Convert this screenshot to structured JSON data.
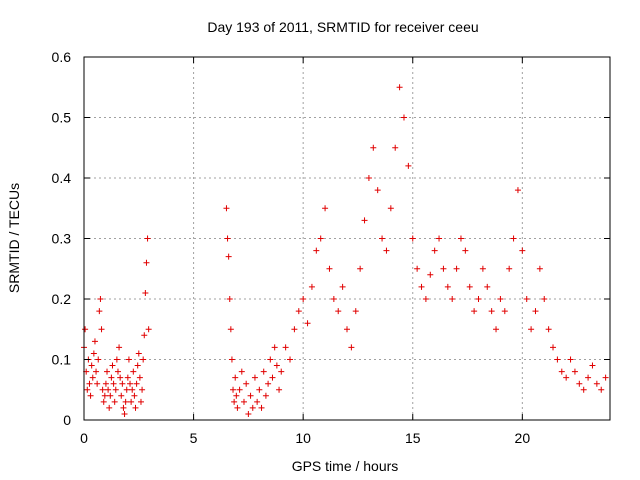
{
  "chart_data": {
    "type": "scatter",
    "title": "Day 193 of 2011, SRMTID for receiver ceeu",
    "xlabel": "GPS time / hours",
    "ylabel": "SRMTID / TECUs",
    "xlim": [
      0,
      24
    ],
    "ylim": [
      0,
      0.6
    ],
    "grid": true,
    "x_ticks": [
      0,
      5,
      10,
      15,
      20
    ],
    "x_tick_labels": [
      "0",
      "5",
      "10",
      "15",
      "20"
    ],
    "y_ticks": [
      0,
      0.1,
      0.2,
      0.3,
      0.4,
      0.5,
      0.6
    ],
    "y_tick_labels": [
      "0",
      "0.1",
      "0.2",
      "0.3",
      "0.4",
      "0.5",
      "0.6"
    ],
    "marker": "+",
    "color": "#e00000",
    "series": [
      {
        "name": "SRMTID",
        "points": [
          [
            0.0,
            0.12
          ],
          [
            0.05,
            0.15
          ],
          [
            0.1,
            0.08
          ],
          [
            0.15,
            0.05
          ],
          [
            0.2,
            0.1
          ],
          [
            0.25,
            0.06
          ],
          [
            0.3,
            0.04
          ],
          [
            0.35,
            0.09
          ],
          [
            0.4,
            0.07
          ],
          [
            0.45,
            0.11
          ],
          [
            0.5,
            0.13
          ],
          [
            0.55,
            0.08
          ],
          [
            0.6,
            0.06
          ],
          [
            0.65,
            0.1
          ],
          [
            0.7,
            0.18
          ],
          [
            0.75,
            0.2
          ],
          [
            0.8,
            0.15
          ],
          [
            0.85,
            0.05
          ],
          [
            0.9,
            0.03
          ],
          [
            0.95,
            0.04
          ],
          [
            1.0,
            0.06
          ],
          [
            1.05,
            0.08
          ],
          [
            1.1,
            0.05
          ],
          [
            1.15,
            0.02
          ],
          [
            1.2,
            0.04
          ],
          [
            1.25,
            0.07
          ],
          [
            1.3,
            0.09
          ],
          [
            1.35,
            0.06
          ],
          [
            1.4,
            0.03
          ],
          [
            1.45,
            0.05
          ],
          [
            1.5,
            0.1
          ],
          [
            1.55,
            0.08
          ],
          [
            1.6,
            0.12
          ],
          [
            1.65,
            0.07
          ],
          [
            1.7,
            0.04
          ],
          [
            1.75,
            0.06
          ],
          [
            1.8,
            0.02
          ],
          [
            1.85,
            0.01
          ],
          [
            1.9,
            0.03
          ],
          [
            1.95,
            0.05
          ],
          [
            2.0,
            0.07
          ],
          [
            2.05,
            0.1
          ],
          [
            2.1,
            0.06
          ],
          [
            2.15,
            0.03
          ],
          [
            2.2,
            0.05
          ],
          [
            2.25,
            0.08
          ],
          [
            2.3,
            0.04
          ],
          [
            2.35,
            0.02
          ],
          [
            2.4,
            0.06
          ],
          [
            2.45,
            0.09
          ],
          [
            2.5,
            0.11
          ],
          [
            2.55,
            0.07
          ],
          [
            2.6,
            0.03
          ],
          [
            2.65,
            0.05
          ],
          [
            2.7,
            0.1
          ],
          [
            2.75,
            0.14
          ],
          [
            2.8,
            0.21
          ],
          [
            2.85,
            0.26
          ],
          [
            2.9,
            0.3
          ],
          [
            2.95,
            0.15
          ],
          [
            6.5,
            0.35
          ],
          [
            6.55,
            0.3
          ],
          [
            6.6,
            0.27
          ],
          [
            6.65,
            0.2
          ],
          [
            6.7,
            0.15
          ],
          [
            6.75,
            0.1
          ],
          [
            6.8,
            0.05
          ],
          [
            6.85,
            0.03
          ],
          [
            6.9,
            0.07
          ],
          [
            6.95,
            0.04
          ],
          [
            7.0,
            0.02
          ],
          [
            7.1,
            0.05
          ],
          [
            7.2,
            0.08
          ],
          [
            7.3,
            0.03
          ],
          [
            7.4,
            0.06
          ],
          [
            7.5,
            0.01
          ],
          [
            7.6,
            0.04
          ],
          [
            7.7,
            0.02
          ],
          [
            7.8,
            0.07
          ],
          [
            7.9,
            0.03
          ],
          [
            8.0,
            0.05
          ],
          [
            8.1,
            0.02
          ],
          [
            8.2,
            0.08
          ],
          [
            8.3,
            0.04
          ],
          [
            8.4,
            0.06
          ],
          [
            8.5,
            0.1
          ],
          [
            8.6,
            0.07
          ],
          [
            8.7,
            0.12
          ],
          [
            8.8,
            0.09
          ],
          [
            8.9,
            0.05
          ],
          [
            9.0,
            0.08
          ],
          [
            9.2,
            0.12
          ],
          [
            9.4,
            0.1
          ],
          [
            9.6,
            0.15
          ],
          [
            9.8,
            0.18
          ],
          [
            10.0,
            0.2
          ],
          [
            10.2,
            0.16
          ],
          [
            10.4,
            0.22
          ],
          [
            10.6,
            0.28
          ],
          [
            10.8,
            0.3
          ],
          [
            11.0,
            0.35
          ],
          [
            11.2,
            0.25
          ],
          [
            11.4,
            0.2
          ],
          [
            11.6,
            0.18
          ],
          [
            11.8,
            0.22
          ],
          [
            12.0,
            0.15
          ],
          [
            12.2,
            0.12
          ],
          [
            12.4,
            0.18
          ],
          [
            12.6,
            0.25
          ],
          [
            12.8,
            0.33
          ],
          [
            13.0,
            0.4
          ],
          [
            13.2,
            0.45
          ],
          [
            13.4,
            0.38
          ],
          [
            13.6,
            0.3
          ],
          [
            13.8,
            0.28
          ],
          [
            14.0,
            0.35
          ],
          [
            14.2,
            0.45
          ],
          [
            14.4,
            0.55
          ],
          [
            14.6,
            0.5
          ],
          [
            14.8,
            0.42
          ],
          [
            15.0,
            0.3
          ],
          [
            15.2,
            0.25
          ],
          [
            15.4,
            0.22
          ],
          [
            15.6,
            0.2
          ],
          [
            15.8,
            0.24
          ],
          [
            16.0,
            0.28
          ],
          [
            16.2,
            0.3
          ],
          [
            16.4,
            0.25
          ],
          [
            16.6,
            0.22
          ],
          [
            16.8,
            0.2
          ],
          [
            17.0,
            0.25
          ],
          [
            17.2,
            0.3
          ],
          [
            17.4,
            0.28
          ],
          [
            17.6,
            0.22
          ],
          [
            17.8,
            0.18
          ],
          [
            18.0,
            0.2
          ],
          [
            18.2,
            0.25
          ],
          [
            18.4,
            0.22
          ],
          [
            18.6,
            0.18
          ],
          [
            18.8,
            0.15
          ],
          [
            19.0,
            0.2
          ],
          [
            19.2,
            0.18
          ],
          [
            19.4,
            0.25
          ],
          [
            19.6,
            0.3
          ],
          [
            19.8,
            0.38
          ],
          [
            20.0,
            0.28
          ],
          [
            20.2,
            0.2
          ],
          [
            20.4,
            0.15
          ],
          [
            20.6,
            0.18
          ],
          [
            20.8,
            0.25
          ],
          [
            21.0,
            0.2
          ],
          [
            21.2,
            0.15
          ],
          [
            21.4,
            0.12
          ],
          [
            21.6,
            0.1
          ],
          [
            21.8,
            0.08
          ],
          [
            22.0,
            0.07
          ],
          [
            22.2,
            0.1
          ],
          [
            22.4,
            0.08
          ],
          [
            22.6,
            0.06
          ],
          [
            22.8,
            0.05
          ],
          [
            23.0,
            0.07
          ],
          [
            23.2,
            0.09
          ],
          [
            23.4,
            0.06
          ],
          [
            23.6,
            0.05
          ],
          [
            23.8,
            0.07
          ]
        ]
      }
    ]
  }
}
